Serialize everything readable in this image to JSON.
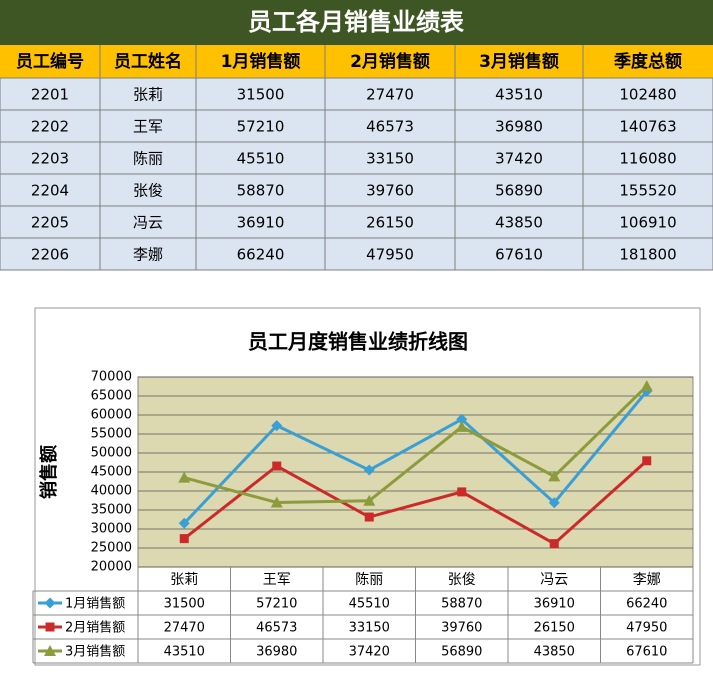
{
  "table": {
    "title": "员工各月销售业绩表",
    "header": [
      "员工编号",
      "员工姓名",
      "1月销售额",
      "2月销售额",
      "3月销售额",
      "季度总额"
    ],
    "rows": [
      [
        2201,
        "张莉",
        31500,
        27470,
        43510,
        102480
      ],
      [
        2202,
        "王军",
        57210,
        46573,
        36980,
        140763
      ],
      [
        2203,
        "陈丽",
        45510,
        33150,
        37420,
        116080
      ],
      [
        2204,
        "张俊",
        58870,
        39760,
        56890,
        155520
      ],
      [
        2205,
        "冯云",
        36910,
        26150,
        43850,
        106910
      ],
      [
        2206,
        "李娜",
        66240,
        47950,
        67610,
        181800
      ]
    ]
  },
  "chart_data": {
    "type": "line",
    "title": "员工月度销售业绩折线图",
    "y_label": "销售额",
    "categories": [
      "张莉",
      "王军",
      "陈丽",
      "张俊",
      "冯云",
      "李娜"
    ],
    "series": [
      {
        "name": "1月销售额",
        "color": "#3a9fd4",
        "marker": "diamond",
        "values": [
          31500,
          57210,
          45510,
          58870,
          36910,
          66240
        ]
      },
      {
        "name": "2月销售额",
        "color": "#cc2a2a",
        "marker": "square",
        "values": [
          27470,
          46573,
          33150,
          39760,
          26150,
          47950
        ]
      },
      {
        "name": "3月销售额",
        "color": "#8c9c3c",
        "marker": "triangle",
        "values": [
          43510,
          36980,
          37420,
          56890,
          43850,
          67610
        ]
      }
    ],
    "ylim": [
      20000,
      70000
    ],
    "yticks": [
      20000,
      25000,
      30000,
      35000,
      40000,
      45000,
      50000,
      55000,
      60000,
      65000,
      70000
    ],
    "grid": true,
    "data_table": true
  }
}
